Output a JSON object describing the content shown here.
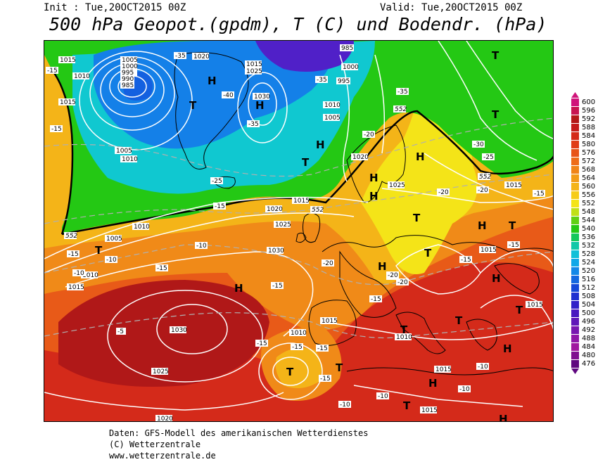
{
  "header": {
    "init": "Init : Tue,20OCT2015 00Z",
    "valid": "Valid: Tue,20OCT2015 00Z",
    "title": "500 hPa Geopot.(gpdm), T (C) und Bodendr. (hPa)"
  },
  "footer": {
    "line1": "Daten: GFS-Modell des amerikanischen Wetterdienstes",
    "line2": "(C) Wetterzentrale",
    "line3": "www.wetterzentrale.de"
  },
  "colors": {
    "ocean_red": "#b01818",
    "red": "#d42a1a",
    "orange_red": "#e85a18",
    "orange": "#f08a18",
    "yellow_orange": "#f4b418",
    "yellow": "#f4e418",
    "green": "#24c814",
    "cyan": "#10c8d0",
    "blue": "#1480e8",
    "purple": "#5020c8",
    "isobar": "#ffffff",
    "coast": "#000000"
  },
  "scale": {
    "labels": [
      "600",
      "596",
      "592",
      "588",
      "584",
      "580",
      "576",
      "572",
      "568",
      "564",
      "560",
      "556",
      "552",
      "548",
      "544",
      "540",
      "536",
      "532",
      "528",
      "524",
      "520",
      "516",
      "512",
      "508",
      "504",
      "500",
      "496",
      "492",
      "488",
      "484",
      "480",
      "476"
    ],
    "colors": [
      "#d0147a",
      "#c81450",
      "#b41818",
      "#c41c1c",
      "#d42a1a",
      "#e03c18",
      "#e85418",
      "#ee6c18",
      "#f08418",
      "#f29c18",
      "#f4b418",
      "#f6cc18",
      "#f4e418",
      "#c0e018",
      "#60d014",
      "#24c814",
      "#14c85c",
      "#10c8a8",
      "#10c0d8",
      "#10a8e8",
      "#1488e8",
      "#1468e0",
      "#1448d8",
      "#2030d0",
      "#3020c8",
      "#4818c0",
      "#6018b8",
      "#7818b0",
      "#9018a8",
      "#a018a0",
      "#801090",
      "#600880"
    ],
    "top_marker_color": "#d0147a",
    "bottom_marker_color": "#600880"
  },
  "map_labels": {
    "isobars": [
      "1015",
      "1010",
      "1005",
      "1000",
      "995",
      "990",
      "985",
      "1020",
      "1025",
      "1030",
      "1015",
      "1005",
      "1010",
      "1000",
      "995",
      "985",
      "1010",
      "1005",
      "1020",
      "1025",
      "1030",
      "1015",
      "1030",
      "1025",
      "1020",
      "1015",
      "1010",
      "1005",
      "1010",
      "1015",
      "1015",
      "1010",
      "1020",
      "1025",
      "1015",
      "1015",
      "1015",
      "1010",
      "1015",
      "1015"
    ],
    "temps": [
      "-15",
      "-15",
      "-40",
      "-35",
      "-35",
      "-35",
      "-25",
      "-20",
      "-15",
      "-10",
      "-10",
      "-15",
      "-15",
      "-20",
      "-25",
      "-15",
      "-5",
      "-15",
      "-15",
      "-15",
      "-15",
      "-10",
      "-10",
      "-10",
      "-10",
      "-15",
      "-20",
      "-20",
      "-20",
      "-20",
      "-15",
      "-15",
      "-35",
      "-30",
      "-25",
      "-10",
      "-15"
    ],
    "geopot": [
      "552",
      "552",
      "552",
      "552"
    ],
    "highs": [
      "H",
      "H",
      "H",
      "H",
      "H",
      "H",
      "H",
      "H",
      "H",
      "H",
      "H",
      "H",
      "H"
    ],
    "lows": [
      "T",
      "T",
      "T",
      "T",
      "T",
      "T",
      "T",
      "T",
      "T",
      "T",
      "T",
      "T",
      "T",
      "T"
    ]
  }
}
